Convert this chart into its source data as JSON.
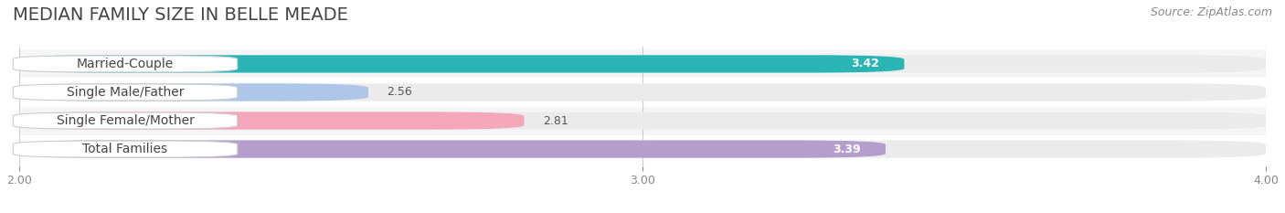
{
  "title": "MEDIAN FAMILY SIZE IN BELLE MEADE",
  "source": "Source: ZipAtlas.com",
  "categories": [
    "Married-Couple",
    "Single Male/Father",
    "Single Female/Mother",
    "Total Families"
  ],
  "values": [
    3.42,
    2.56,
    2.81,
    3.39
  ],
  "bar_colors": [
    "#2ab5b5",
    "#aec6e8",
    "#f4a7b9",
    "#b49fcc"
  ],
  "xlim": [
    2.0,
    4.0
  ],
  "xticks": [
    2.0,
    3.0,
    4.0
  ],
  "xtick_labels": [
    "2.00",
    "3.00",
    "4.00"
  ],
  "background_color": "#ffffff",
  "bar_bg_color": "#ebebeb",
  "grid_color": "#cccccc",
  "title_fontsize": 14,
  "source_fontsize": 9,
  "label_fontsize": 10,
  "value_fontsize": 9,
  "tick_fontsize": 9,
  "bar_height": 0.62,
  "xmin": 2.0,
  "row_bg_colors": [
    "#f5f5f5",
    "#ffffff",
    "#f5f5f5",
    "#ffffff"
  ]
}
